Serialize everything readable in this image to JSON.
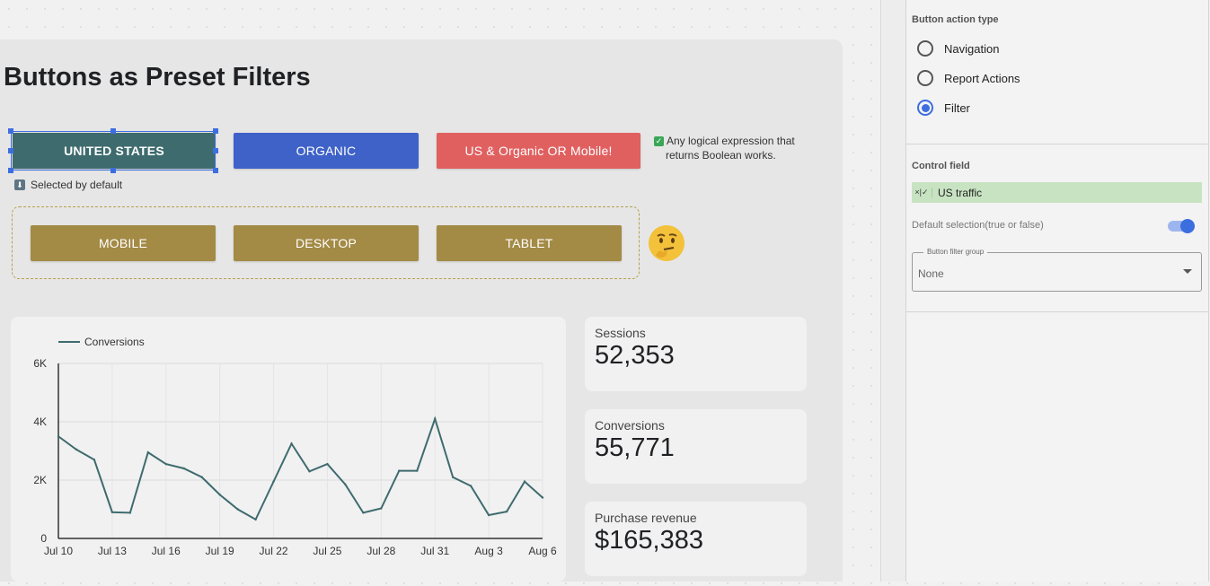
{
  "report": {
    "title": "Buttons as Preset Filters",
    "selected_note": "Selected by default",
    "logic_note_line1": "Any logical expression that",
    "logic_note_line2": "returns Boolean works."
  },
  "buttons": {
    "us": "UNITED STATES",
    "organic": "ORGANIC",
    "combo": "US & Organic OR Mobile!",
    "mobile": "MOBILE",
    "desktop": "DESKTOP",
    "tablet": "TABLET"
  },
  "colors": {
    "us": "#3e6b6e",
    "organic": "#3f62c8",
    "combo": "#e06060",
    "device": "#a38a45",
    "line": "#3e6b6e",
    "accent": "#3d6ee0"
  },
  "kpis": [
    {
      "label": "Sessions",
      "value": "52,353"
    },
    {
      "label": "Conversions",
      "value": "55,771"
    },
    {
      "label": "Purchase revenue",
      "value": "$165,383"
    }
  ],
  "chart_data": {
    "type": "line",
    "legend": "Conversions",
    "legend_position": "top-left",
    "x_ticks": [
      "Jul 10",
      "Jul 13",
      "Jul 16",
      "Jul 19",
      "Jul 22",
      "Jul 25",
      "Jul 28",
      "Jul 31",
      "Aug 3",
      "Aug 6"
    ],
    "y_ticks": [
      "0",
      "2K",
      "4K",
      "6K"
    ],
    "ylim": [
      0,
      6000
    ],
    "grid": true,
    "series": [
      {
        "name": "Conversions",
        "x": [
          "Jul 10",
          "Jul 11",
          "Jul 12",
          "Jul 13",
          "Jul 14",
          "Jul 15",
          "Jul 16",
          "Jul 17",
          "Jul 18",
          "Jul 19",
          "Jul 20",
          "Jul 21",
          "Jul 22",
          "Jul 23",
          "Jul 24",
          "Jul 25",
          "Jul 26",
          "Jul 27",
          "Jul 28",
          "Jul 29",
          "Jul 30",
          "Jul 31",
          "Aug 1",
          "Aug 2",
          "Aug 3",
          "Aug 4",
          "Aug 5",
          "Aug 6"
        ],
        "values": [
          3500,
          3050,
          2700,
          900,
          880,
          2950,
          2550,
          2400,
          2100,
          1500,
          1000,
          650,
          1950,
          3250,
          2300,
          2550,
          1850,
          880,
          1030,
          2320,
          2320,
          4100,
          2100,
          1800,
          800,
          920,
          1950,
          1400
        ]
      }
    ]
  },
  "panel": {
    "action_type_title": "Button action type",
    "options": [
      "Navigation",
      "Report Actions",
      "Filter"
    ],
    "selected_option": "Filter",
    "control_field_title": "Control field",
    "field_icon": "×|✓",
    "field_name": "US traffic",
    "default_label": "Default selection(true or false)",
    "default_value": true,
    "group_label": "Button filter group",
    "group_value": "None"
  }
}
